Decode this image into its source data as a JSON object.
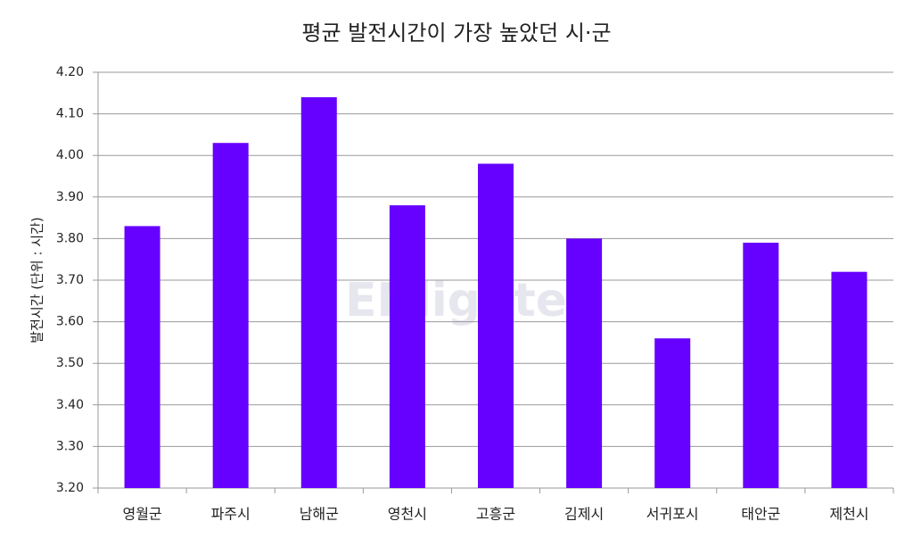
{
  "chart_data": {
    "type": "bar",
    "title": "평균 발전시간이 가장 높았던 시·군",
    "y_label": "발전시간 (단위 : 시간)",
    "watermark": "ENlighten",
    "categories": [
      "영월군",
      "파주시",
      "남해군",
      "영천시",
      "고흥군",
      "김제시",
      "서귀포시",
      "태안군",
      "제천시"
    ],
    "values": [
      3.83,
      4.03,
      4.14,
      3.88,
      3.98,
      3.8,
      3.56,
      3.79,
      3.72
    ],
    "color": "#6600ff",
    "ylim": [
      3.2,
      4.2
    ],
    "yticks": [
      {
        "value": 3.2,
        "label": "3.20"
      },
      {
        "value": 3.3,
        "label": "3.30"
      },
      {
        "value": 3.4,
        "label": "3.40"
      },
      {
        "value": 3.5,
        "label": "3.50"
      },
      {
        "value": 3.6,
        "label": "3.60"
      },
      {
        "value": 3.7,
        "label": "3.70"
      },
      {
        "value": 3.8,
        "label": "3.80"
      },
      {
        "value": 3.9,
        "label": "3.90"
      },
      {
        "value": 4.0,
        "label": "4.00"
      },
      {
        "value": 4.1,
        "label": "4.10"
      },
      {
        "value": 4.2,
        "label": "4.20"
      }
    ],
    "grid": true
  }
}
